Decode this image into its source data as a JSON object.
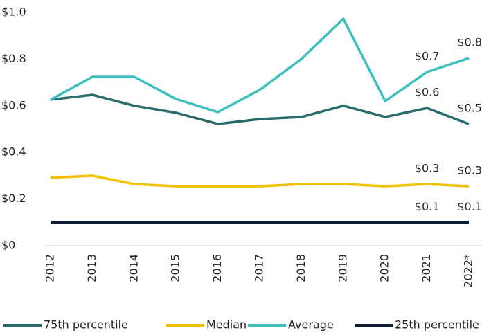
{
  "chart_data": {
    "type": "line",
    "categories": [
      "2012",
      "2013",
      "2014",
      "2015",
      "2016",
      "2017",
      "2018",
      "2019",
      "2020",
      "2021",
      "2022*"
    ],
    "series": [
      {
        "name": "75th percentile",
        "color": "#2a6b6b",
        "values": [
          0.626,
          0.647,
          0.6,
          0.57,
          0.522,
          0.543,
          0.552,
          0.6,
          0.552,
          0.59,
          0.522
        ],
        "value_labels": [
          null,
          null,
          null,
          null,
          null,
          null,
          null,
          null,
          null,
          "$0.6",
          "$0.5"
        ]
      },
      {
        "name": "Median",
        "color": "#f2c200",
        "values": [
          0.291,
          0.3,
          0.264,
          0.255,
          0.255,
          0.255,
          0.264,
          0.264,
          0.255,
          0.264,
          0.255
        ],
        "value_labels": [
          null,
          null,
          null,
          null,
          null,
          null,
          null,
          null,
          null,
          "$0.3",
          "$0.3"
        ]
      },
      {
        "name": "Average",
        "color": "#3dbfbf",
        "values": [
          0.626,
          0.724,
          0.724,
          0.629,
          0.573,
          0.668,
          0.801,
          0.973,
          0.62,
          0.745,
          0.804
        ],
        "value_labels": [
          null,
          null,
          null,
          null,
          null,
          null,
          null,
          null,
          null,
          "$0.7",
          "$0.8"
        ]
      },
      {
        "name": "25th percentile",
        "color": "#0d1b33",
        "values": [
          0.1,
          0.1,
          0.1,
          0.1,
          0.1,
          0.1,
          0.1,
          0.1,
          0.1,
          0.1,
          0.1
        ],
        "value_labels": [
          null,
          null,
          null,
          null,
          null,
          null,
          null,
          null,
          null,
          "$0.1",
          "$0.1"
        ]
      }
    ],
    "ylim": [
      0,
      1.0
    ],
    "yticks": [
      {
        "value": 0,
        "label": "$0"
      },
      {
        "value": 0.2,
        "label": "$0.2"
      },
      {
        "value": 0.4,
        "label": "$0.4"
      },
      {
        "value": 0.6,
        "label": "$0.6"
      },
      {
        "value": 0.8,
        "label": "$0.8"
      },
      {
        "value": 1.0,
        "label": "$1.0"
      }
    ],
    "grid": false,
    "legend": "bottom"
  }
}
